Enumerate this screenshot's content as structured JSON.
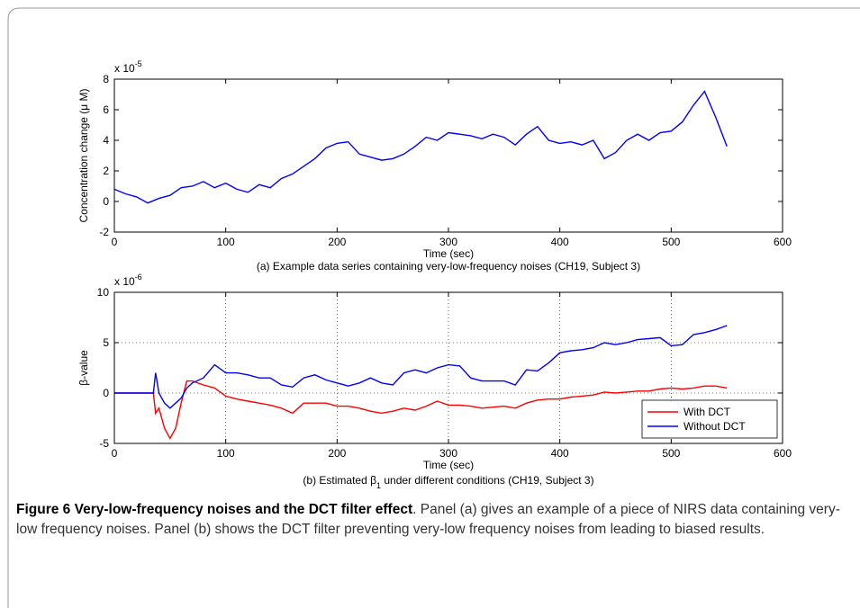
{
  "chart_data": [
    {
      "type": "line",
      "x_label": "Time (sec)",
      "y_label": "Concentration change (μ M)",
      "subtitle": "(a) Example data series containing very-low-frequency noises (CH19, Subject 3)",
      "y_multiplier": {
        "base": "x 10",
        "exponent": "-5"
      },
      "xlim": [
        0,
        600
      ],
      "xticks": [
        0,
        100,
        200,
        300,
        400,
        500,
        600
      ],
      "ylim": [
        -2,
        8
      ],
      "yticks": [
        -2,
        0,
        2,
        4,
        6,
        8
      ],
      "grid": false,
      "x": [
        0,
        10,
        20,
        30,
        40,
        50,
        60,
        70,
        80,
        90,
        100,
        110,
        120,
        130,
        140,
        150,
        160,
        170,
        180,
        190,
        200,
        210,
        220,
        230,
        240,
        250,
        260,
        270,
        280,
        290,
        300,
        310,
        320,
        330,
        340,
        350,
        360,
        370,
        380,
        390,
        400,
        410,
        420,
        430,
        440,
        450,
        460,
        470,
        480,
        490,
        500,
        510,
        520,
        530,
        540,
        550
      ],
      "series": [
        {
          "name": null,
          "color": "#0000ff",
          "values": [
            0.8,
            0.5,
            0.3,
            -0.1,
            0.2,
            0.4,
            0.9,
            1.0,
            1.3,
            0.9,
            1.2,
            0.8,
            0.6,
            1.1,
            0.9,
            1.5,
            1.8,
            2.3,
            2.8,
            3.5,
            3.8,
            3.9,
            3.1,
            2.9,
            2.7,
            2.8,
            3.1,
            3.6,
            4.2,
            4.0,
            4.5,
            4.4,
            4.3,
            4.1,
            4.4,
            4.2,
            3.7,
            4.4,
            4.9,
            4.0,
            3.8,
            3.9,
            3.7,
            4.0,
            2.8,
            3.2,
            4.0,
            4.4,
            4.0,
            4.5,
            4.6,
            5.2,
            6.3,
            7.2,
            5.5,
            3.6
          ]
        }
      ]
    },
    {
      "type": "line",
      "x_label": "Time (sec)",
      "y_label": "β-value",
      "subtitle_parts": [
        "(b) Estimated β",
        "1",
        " under different conditions (CH19, Subject 3)"
      ],
      "y_multiplier": {
        "base": "x 10",
        "exponent": "-6"
      },
      "xlim": [
        0,
        600
      ],
      "xticks": [
        0,
        100,
        200,
        300,
        400,
        500,
        600
      ],
      "ylim": [
        -5,
        10
      ],
      "yticks": [
        -5,
        0,
        5,
        10
      ],
      "grid": true,
      "legend": "lower right",
      "x": [
        0,
        35,
        37,
        40,
        45,
        50,
        55,
        60,
        65,
        70,
        80,
        90,
        100,
        110,
        120,
        130,
        140,
        150,
        160,
        170,
        180,
        190,
        200,
        210,
        220,
        230,
        240,
        250,
        260,
        270,
        280,
        290,
        300,
        310,
        320,
        330,
        340,
        350,
        360,
        370,
        380,
        390,
        400,
        410,
        420,
        430,
        440,
        450,
        460,
        470,
        480,
        490,
        500,
        510,
        520,
        530,
        540,
        550
      ],
      "series": [
        {
          "name": "With DCT",
          "color": "#ff0000",
          "values": [
            0,
            0,
            -2,
            -1.5,
            -3.5,
            -4.5,
            -3.5,
            -1,
            1.2,
            1.2,
            0.8,
            0.5,
            -0.3,
            -0.6,
            -0.8,
            -1.0,
            -1.2,
            -1.5,
            -2.0,
            -1.0,
            -1.0,
            -1.0,
            -1.3,
            -1.3,
            -1.5,
            -1.8,
            -2.0,
            -1.8,
            -1.5,
            -1.7,
            -1.3,
            -0.8,
            -1.2,
            -1.2,
            -1.3,
            -1.5,
            -1.4,
            -1.3,
            -1.5,
            -1.0,
            -0.7,
            -0.6,
            -0.6,
            -0.4,
            -0.3,
            -0.2,
            0.1,
            0.0,
            0.1,
            0.2,
            0.2,
            0.4,
            0.5,
            0.4,
            0.5,
            0.7,
            0.7,
            0.5
          ]
        },
        {
          "name": "Without DCT",
          "color": "#0000ff",
          "values": [
            0,
            0,
            2,
            0,
            -1,
            -1.5,
            -1,
            -0.5,
            0.5,
            1,
            1.5,
            2.8,
            2.0,
            2.0,
            1.8,
            1.5,
            1.5,
            0.8,
            0.6,
            1.5,
            1.8,
            1.3,
            1.0,
            0.7,
            1.0,
            1.5,
            1.0,
            0.8,
            2.0,
            2.3,
            2.0,
            2.5,
            2.8,
            2.7,
            1.5,
            1.2,
            1.2,
            1.2,
            0.8,
            2.3,
            2.2,
            3.0,
            4.0,
            4.2,
            4.3,
            4.5,
            5.0,
            4.8,
            5.0,
            5.3,
            5.4,
            5.5,
            4.7,
            4.8,
            5.8,
            6.0,
            6.3,
            6.7
          ]
        }
      ]
    }
  ],
  "caption": {
    "bold": "Figure 6 Very-low-frequency noises and the DCT filter effect",
    "text": ". Panel (a) gives an example of a piece of NIRS data containing very-low frequency noises. Panel (b) shows the DCT filter preventing very-low frequency noises from leading to biased results."
  }
}
